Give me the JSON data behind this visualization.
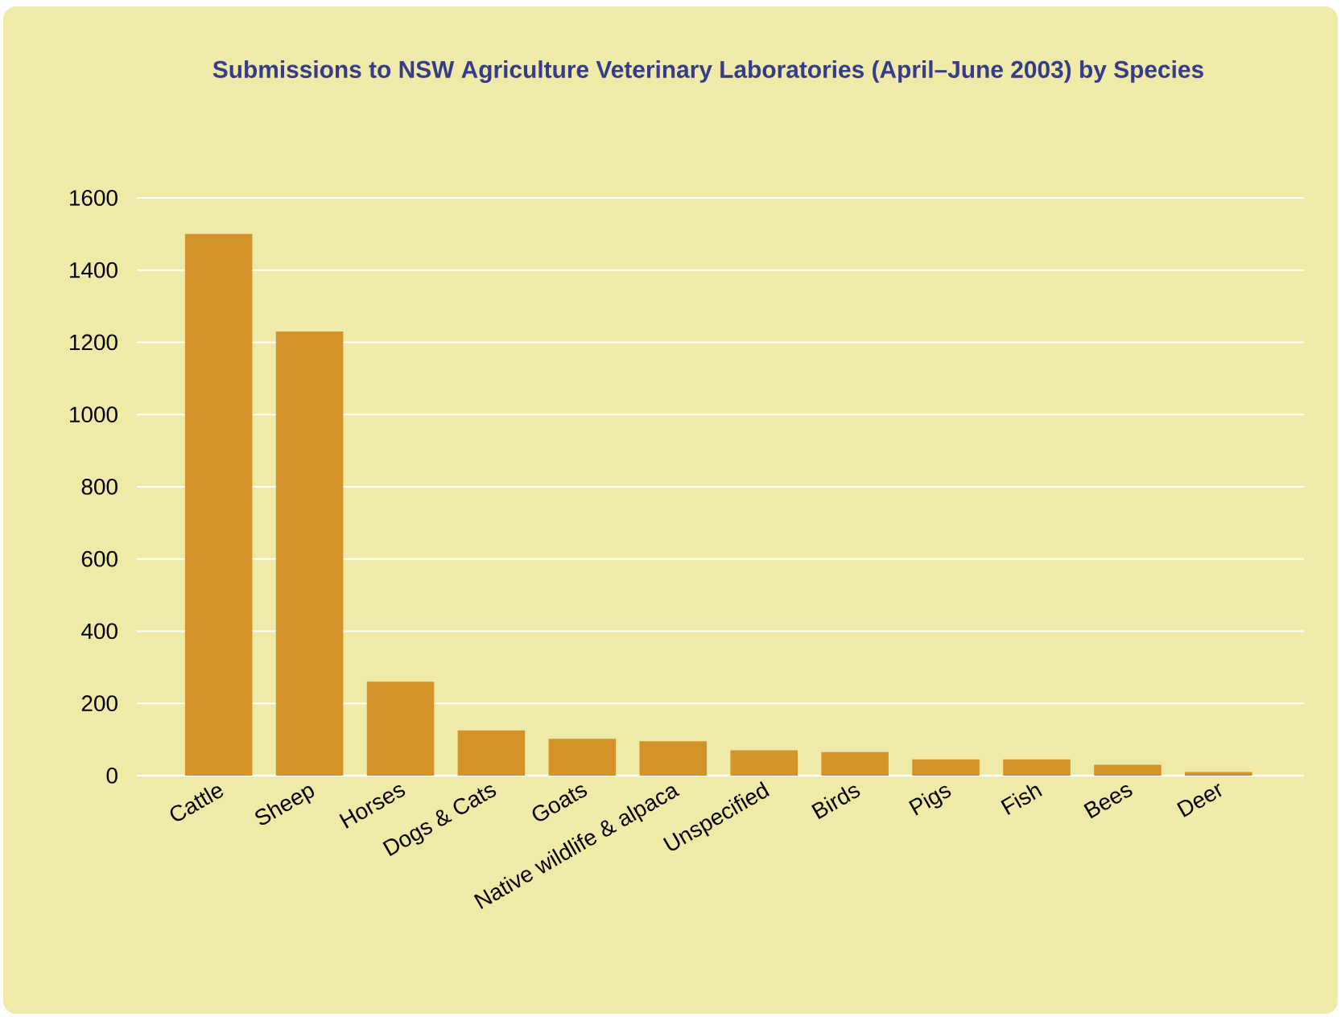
{
  "chart_data": {
    "type": "bar",
    "title": "Submissions to NSW Agriculture Veterinary Laboratories (April–June 2003) by Species",
    "categories": [
      "Cattle",
      "Sheep",
      "Horses",
      "Dogs & Cats",
      "Goats",
      "Native wildlife & alpaca",
      "Unspecified",
      "Birds",
      "Pigs",
      "Fish",
      "Bees",
      "Deer"
    ],
    "values": [
      1500,
      1230,
      260,
      125,
      102,
      95,
      70,
      65,
      45,
      45,
      30,
      10
    ],
    "color": "#d4922a",
    "ylim": [
      0,
      1600
    ],
    "yticks": [
      0,
      200,
      400,
      600,
      800,
      1000,
      1200,
      1400,
      1600
    ],
    "grid": "y"
  }
}
